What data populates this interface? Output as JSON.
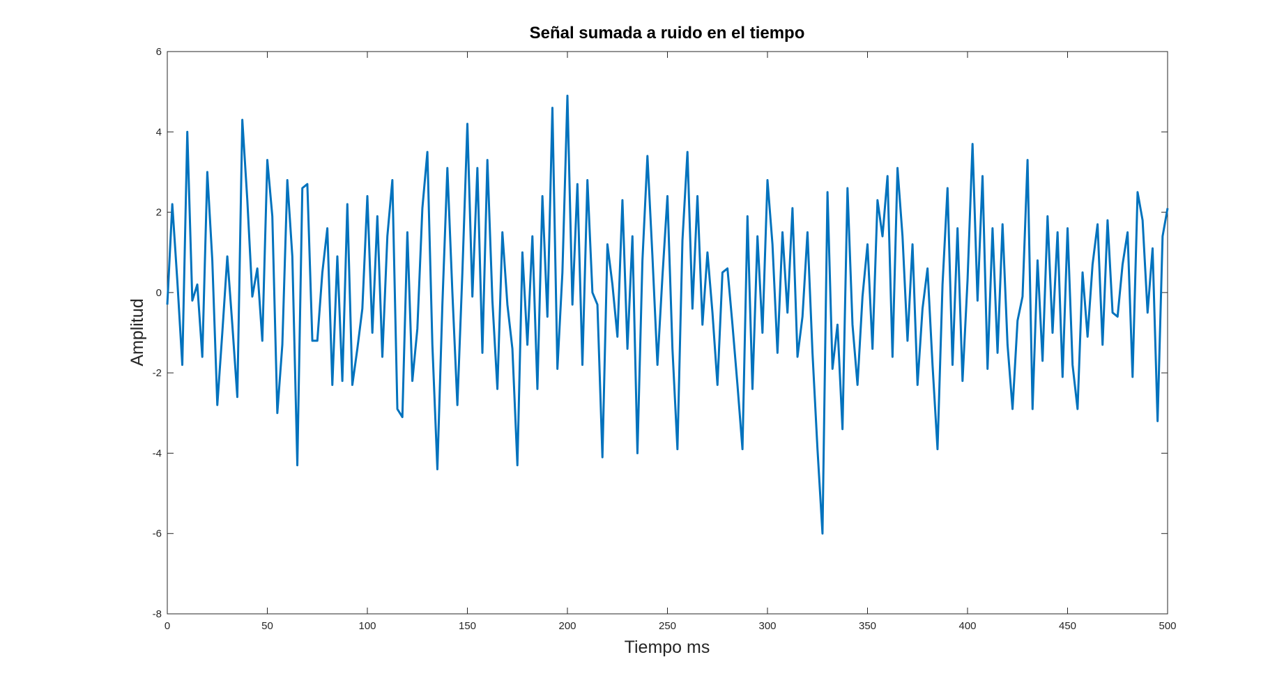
{
  "chart_data": {
    "type": "line",
    "title": "Señal sumada a ruido en el tiempo",
    "x_label": "Tiempo ms",
    "y_label": "Amplitud",
    "x": [
      0,
      2.5,
      5,
      7.5,
      10,
      12.5,
      15,
      17.5,
      20,
      22.5,
      25,
      27.5,
      30,
      32.5,
      35,
      37.5,
      40,
      42.5,
      45,
      47.5,
      50,
      52.5,
      55,
      57.5,
      60,
      62.5,
      65,
      67.5,
      70,
      72.5,
      75,
      77.5,
      80,
      82.5,
      85,
      87.5,
      90,
      92.5,
      95,
      97.5,
      100,
      102.5,
      105,
      107.5,
      110,
      112.5,
      115,
      117.5,
      120,
      122.5,
      125,
      127.5,
      130,
      132.5,
      135,
      137.5,
      140,
      142.5,
      145,
      147.5,
      150,
      152.5,
      155,
      157.5,
      160,
      162.5,
      165,
      167.5,
      170,
      172.5,
      175,
      177.5,
      180,
      182.5,
      185,
      187.5,
      190,
      192.5,
      195,
      197.5,
      200,
      202.5,
      205,
      207.5,
      210,
      212.5,
      215,
      217.5,
      220,
      222.5,
      225,
      227.5,
      230,
      232.5,
      235,
      237.5,
      240,
      242.5,
      245,
      247.5,
      250,
      252.5,
      255,
      257.5,
      260,
      262.5,
      265,
      267.5,
      270,
      272.5,
      275,
      277.5,
      280,
      282.5,
      285,
      287.5,
      290,
      292.5,
      295,
      297.5,
      300,
      302.5,
      305,
      307.5,
      310,
      312.5,
      315,
      317.5,
      320,
      322.5,
      325,
      327.5,
      330,
      332.5,
      335,
      337.5,
      340,
      342.5,
      345,
      347.5,
      350,
      352.5,
      355,
      357.5,
      360,
      362.5,
      365,
      367.5,
      370,
      372.5,
      375,
      377.5,
      380,
      382.5,
      385,
      387.5,
      390,
      392.5,
      395,
      397.5,
      400,
      402.5,
      405,
      407.5,
      410,
      412.5,
      415,
      417.5,
      420,
      422.5,
      425,
      427.5,
      430,
      432.5,
      435,
      437.5,
      440,
      442.5,
      445,
      447.5,
      450,
      452.5,
      455,
      457.5,
      460,
      462.5,
      465,
      467.5,
      470,
      472.5,
      475,
      477.5,
      480,
      482.5,
      485,
      487.5,
      490,
      492.5,
      495,
      497.5,
      500
    ],
    "series": [
      {
        "color": "#0072bd",
        "values": [
          -0.3,
          2.2,
          0.3,
          -1.8,
          4.0,
          -0.2,
          0.2,
          -1.6,
          3.0,
          0.8,
          -2.8,
          -1.0,
          0.9,
          -0.8,
          -2.6,
          4.3,
          2.3,
          -0.1,
          0.6,
          -1.2,
          3.3,
          1.9,
          -3.0,
          -1.3,
          2.8,
          0.9,
          -4.3,
          2.6,
          2.7,
          -1.2,
          -1.2,
          0.5,
          1.6,
          -2.3,
          0.9,
          -2.2,
          2.2,
          -2.3,
          -1.4,
          -0.4,
          2.4,
          -1.0,
          1.9,
          -1.6,
          1.4,
          2.8,
          -2.9,
          -3.1,
          1.5,
          -2.2,
          -0.9,
          2.1,
          3.5,
          -1.3,
          -4.4,
          -0.3,
          3.1,
          0.0,
          -2.8,
          0.5,
          4.2,
          -0.1,
          3.1,
          -1.5,
          3.3,
          -0.2,
          -2.4,
          1.5,
          -0.3,
          -1.4,
          -4.3,
          1.0,
          -1.3,
          1.4,
          -2.4,
          2.4,
          -0.6,
          4.6,
          -1.9,
          0.5,
          4.9,
          -0.3,
          2.7,
          -1.8,
          2.8,
          0.0,
          -0.3,
          -4.1,
          1.2,
          0.2,
          -1.1,
          2.3,
          -1.4,
          1.4,
          -4.0,
          0.8,
          3.4,
          0.9,
          -1.8,
          0.4,
          2.4,
          -1.4,
          -3.9,
          1.3,
          3.5,
          -0.4,
          2.4,
          -0.8,
          1.0,
          -0.5,
          -2.3,
          0.5,
          0.6,
          -0.8,
          -2.3,
          -3.9,
          1.9,
          -2.4,
          1.4,
          -1.0,
          2.8,
          1.2,
          -1.5,
          1.5,
          -0.5,
          2.1,
          -1.6,
          -0.6,
          1.5,
          -1.5,
          -3.9,
          -6.0,
          2.5,
          -1.9,
          -0.8,
          -3.4,
          2.6,
          -0.8,
          -2.3,
          -0.1,
          1.2,
          -1.4,
          2.3,
          1.4,
          2.9,
          -1.6,
          3.1,
          1.4,
          -1.2,
          1.2,
          -2.3,
          -0.4,
          0.6,
          -1.8,
          -3.9,
          0.2,
          2.6,
          -1.8,
          1.6,
          -2.2,
          0.3,
          3.7,
          -0.2,
          2.9,
          -1.9,
          1.6,
          -1.5,
          1.7,
          -1.3,
          -2.9,
          -0.7,
          -0.1,
          3.3,
          -2.9,
          0.8,
          -1.7,
          1.9,
          -1.0,
          1.5,
          -2.1,
          1.6,
          -1.8,
          -2.9,
          0.5,
          -1.1,
          0.7,
          1.7,
          -1.3,
          1.8,
          -0.5,
          -0.6,
          0.7,
          1.5,
          -2.1,
          2.5,
          1.8,
          -0.5,
          1.1,
          -3.2,
          1.4,
          2.1
        ]
      }
    ],
    "xlim": [
      0,
      500
    ],
    "xticks": [
      0,
      50,
      100,
      150,
      200,
      250,
      300,
      350,
      400,
      450,
      500
    ],
    "ylim": [
      -8,
      6
    ],
    "yticks": [
      -8,
      -6,
      -4,
      -2,
      0,
      2,
      4,
      6
    ],
    "grid": false
  }
}
